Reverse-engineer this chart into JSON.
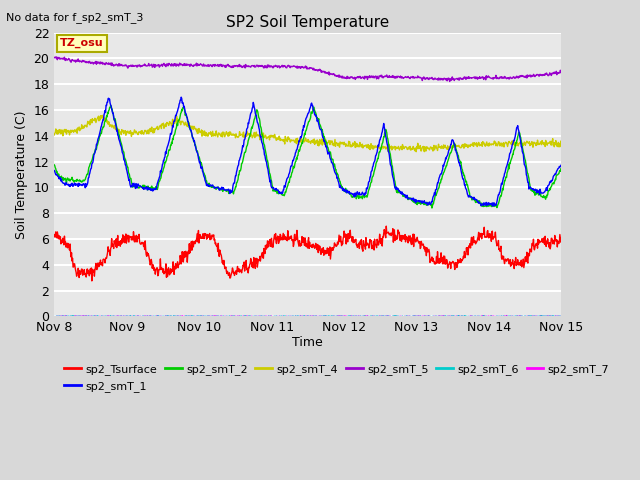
{
  "title": "SP2 Soil Temperature",
  "subtitle": "No data for f_sp2_smT_3",
  "ylabel": "Soil Temperature (C)",
  "xlabel": "Time",
  "tz_label": "TZ_osu",
  "x_tick_labels": [
    "Nov 8",
    "Nov 9",
    "Nov 10",
    "Nov 11",
    "Nov 12",
    "Nov 13",
    "Nov 14",
    "Nov 15"
  ],
  "ylim": [
    0,
    22
  ],
  "yticks": [
    0,
    2,
    4,
    6,
    8,
    10,
    12,
    14,
    16,
    18,
    20,
    22
  ],
  "series_colors": {
    "sp2_Tsurface": "#ff0000",
    "sp2_smT_1": "#0000ff",
    "sp2_smT_2": "#00cc00",
    "sp2_smT_4": "#cccc00",
    "sp2_smT_5": "#9900cc",
    "sp2_smT_6": "#00cccc",
    "sp2_smT_7": "#ff00ff"
  },
  "background_color": "#d8d8d8",
  "plot_bg_color": "#e8e8e8",
  "grid_color": "#ffffff",
  "n_points": 1000
}
